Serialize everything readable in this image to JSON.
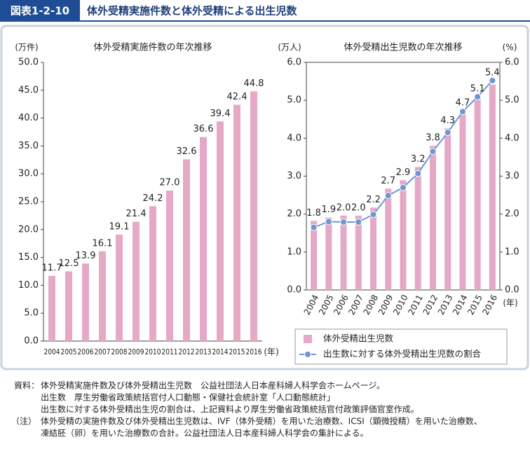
{
  "header": {
    "label": "図表1-2-10",
    "title": "体外受精実施件数と体外受精による出生児数"
  },
  "chart_data": [
    {
      "type": "bar",
      "title": "体外受精実施件数の年次推移",
      "y_label": "(万件)",
      "x_label": "(年)",
      "categories": [
        "2004",
        "2005",
        "2006",
        "2007",
        "2008",
        "2009",
        "2010",
        "2011",
        "2012",
        "2013",
        "2014",
        "2015",
        "2016"
      ],
      "values": [
        11.7,
        12.5,
        13.9,
        16.1,
        19.1,
        21.4,
        24.2,
        27.0,
        32.6,
        36.6,
        39.4,
        42.4,
        44.8
      ],
      "value_labels": [
        "11.7",
        "12.5",
        "13.9",
        "16.1",
        "19.1",
        "21.4",
        "24.2",
        "27.0",
        "32.6",
        "36.6",
        "39.4",
        "42.4",
        "44.8"
      ],
      "color": "#e4a9c6",
      "ylim": [
        0,
        50
      ],
      "yticks": [
        {
          "value": 0,
          "label": "0.0"
        },
        {
          "value": 5,
          "label": "5.0"
        },
        {
          "value": 10,
          "label": "10.0"
        },
        {
          "value": 15,
          "label": "15.0"
        },
        {
          "value": 20,
          "label": "20.0"
        },
        {
          "value": 25,
          "label": "25.0"
        },
        {
          "value": 30,
          "label": "30.0"
        },
        {
          "value": 35,
          "label": "35.0"
        },
        {
          "value": 40,
          "label": "40.0"
        },
        {
          "value": 45,
          "label": "45.0"
        },
        {
          "value": 50,
          "label": "50.0"
        }
      ],
      "grid": false
    },
    {
      "type": "bar",
      "title": "体外受精出生児数の年次推移",
      "y_label": "(万人)",
      "y2_label": "(%)",
      "x_label": "(年)",
      "categories": [
        "2004",
        "2005",
        "2006",
        "2007",
        "2008",
        "2009",
        "2010",
        "2011",
        "2012",
        "2013",
        "2014",
        "2015",
        "2016"
      ],
      "series": [
        {
          "name": "体外受精出生児数",
          "color": "#e4a9c6",
          "type": "bar",
          "values": [
            1.82,
            1.91,
            1.96,
            1.96,
            2.17,
            2.67,
            2.89,
            3.24,
            3.8,
            4.26,
            4.73,
            5.1,
            5.41
          ],
          "value_labels": [
            "1.8",
            "1.9",
            "2.0",
            "2.0",
            "2.2",
            "2.7",
            "2.9",
            "3.2",
            "3.8",
            "4.3",
            "4.7",
            "5.1",
            "5.4"
          ]
        },
        {
          "name": "出生数に対する体外受精出生児数の割合",
          "color": "#6f96d2",
          "type": "line",
          "axis": "y2",
          "values": [
            1.65,
            1.8,
            1.79,
            1.79,
            1.99,
            2.49,
            2.7,
            3.07,
            3.65,
            4.15,
            4.7,
            5.09,
            5.52
          ]
        }
      ],
      "ylim": [
        0,
        6
      ],
      "yticks": [
        {
          "value": 0,
          "label": "0.0"
        },
        {
          "value": 1,
          "label": "1.0"
        },
        {
          "value": 2,
          "label": "2.0"
        },
        {
          "value": 3,
          "label": "3.0"
        },
        {
          "value": 4,
          "label": "4.0"
        },
        {
          "value": 5,
          "label": "5.0"
        },
        {
          "value": 6,
          "label": "6.0"
        }
      ],
      "y2lim": [
        0,
        6
      ],
      "y2ticks": [
        {
          "value": 0,
          "label": "0.0"
        },
        {
          "value": 1,
          "label": "1.0"
        },
        {
          "value": 2,
          "label": "2.0"
        },
        {
          "value": 3,
          "label": "3.0"
        },
        {
          "value": 4,
          "label": "4.0"
        },
        {
          "value": 5,
          "label": "5.0"
        },
        {
          "value": 6,
          "label": "6.0"
        }
      ],
      "grid": false,
      "legend": "bottom"
    }
  ],
  "notes": [
    {
      "label": "資料：",
      "lines": [
        "体外受精実施件数及び体外受精出生児数　公益社団法人日本産科婦人科学会ホームページ。",
        "出生数　厚生労働省政策統括官付人口動態・保健社会統計室「人口動態統計」",
        "出生数に対する体外受精出生児の割合は、上記資料より厚生労働省政策統括官付政策評価官室作成。"
      ]
    },
    {
      "label": "（注）",
      "lines": [
        "体外受精の実施件数及び体外受精出生児数は、IVF（体外受精）を用いた治療数、ICSI（顕微授精）を用いた治療数、",
        "凍結胚（卵）を用いた治療数の合計。公益社団法人日本産科婦人科学会の集計による。"
      ]
    }
  ]
}
